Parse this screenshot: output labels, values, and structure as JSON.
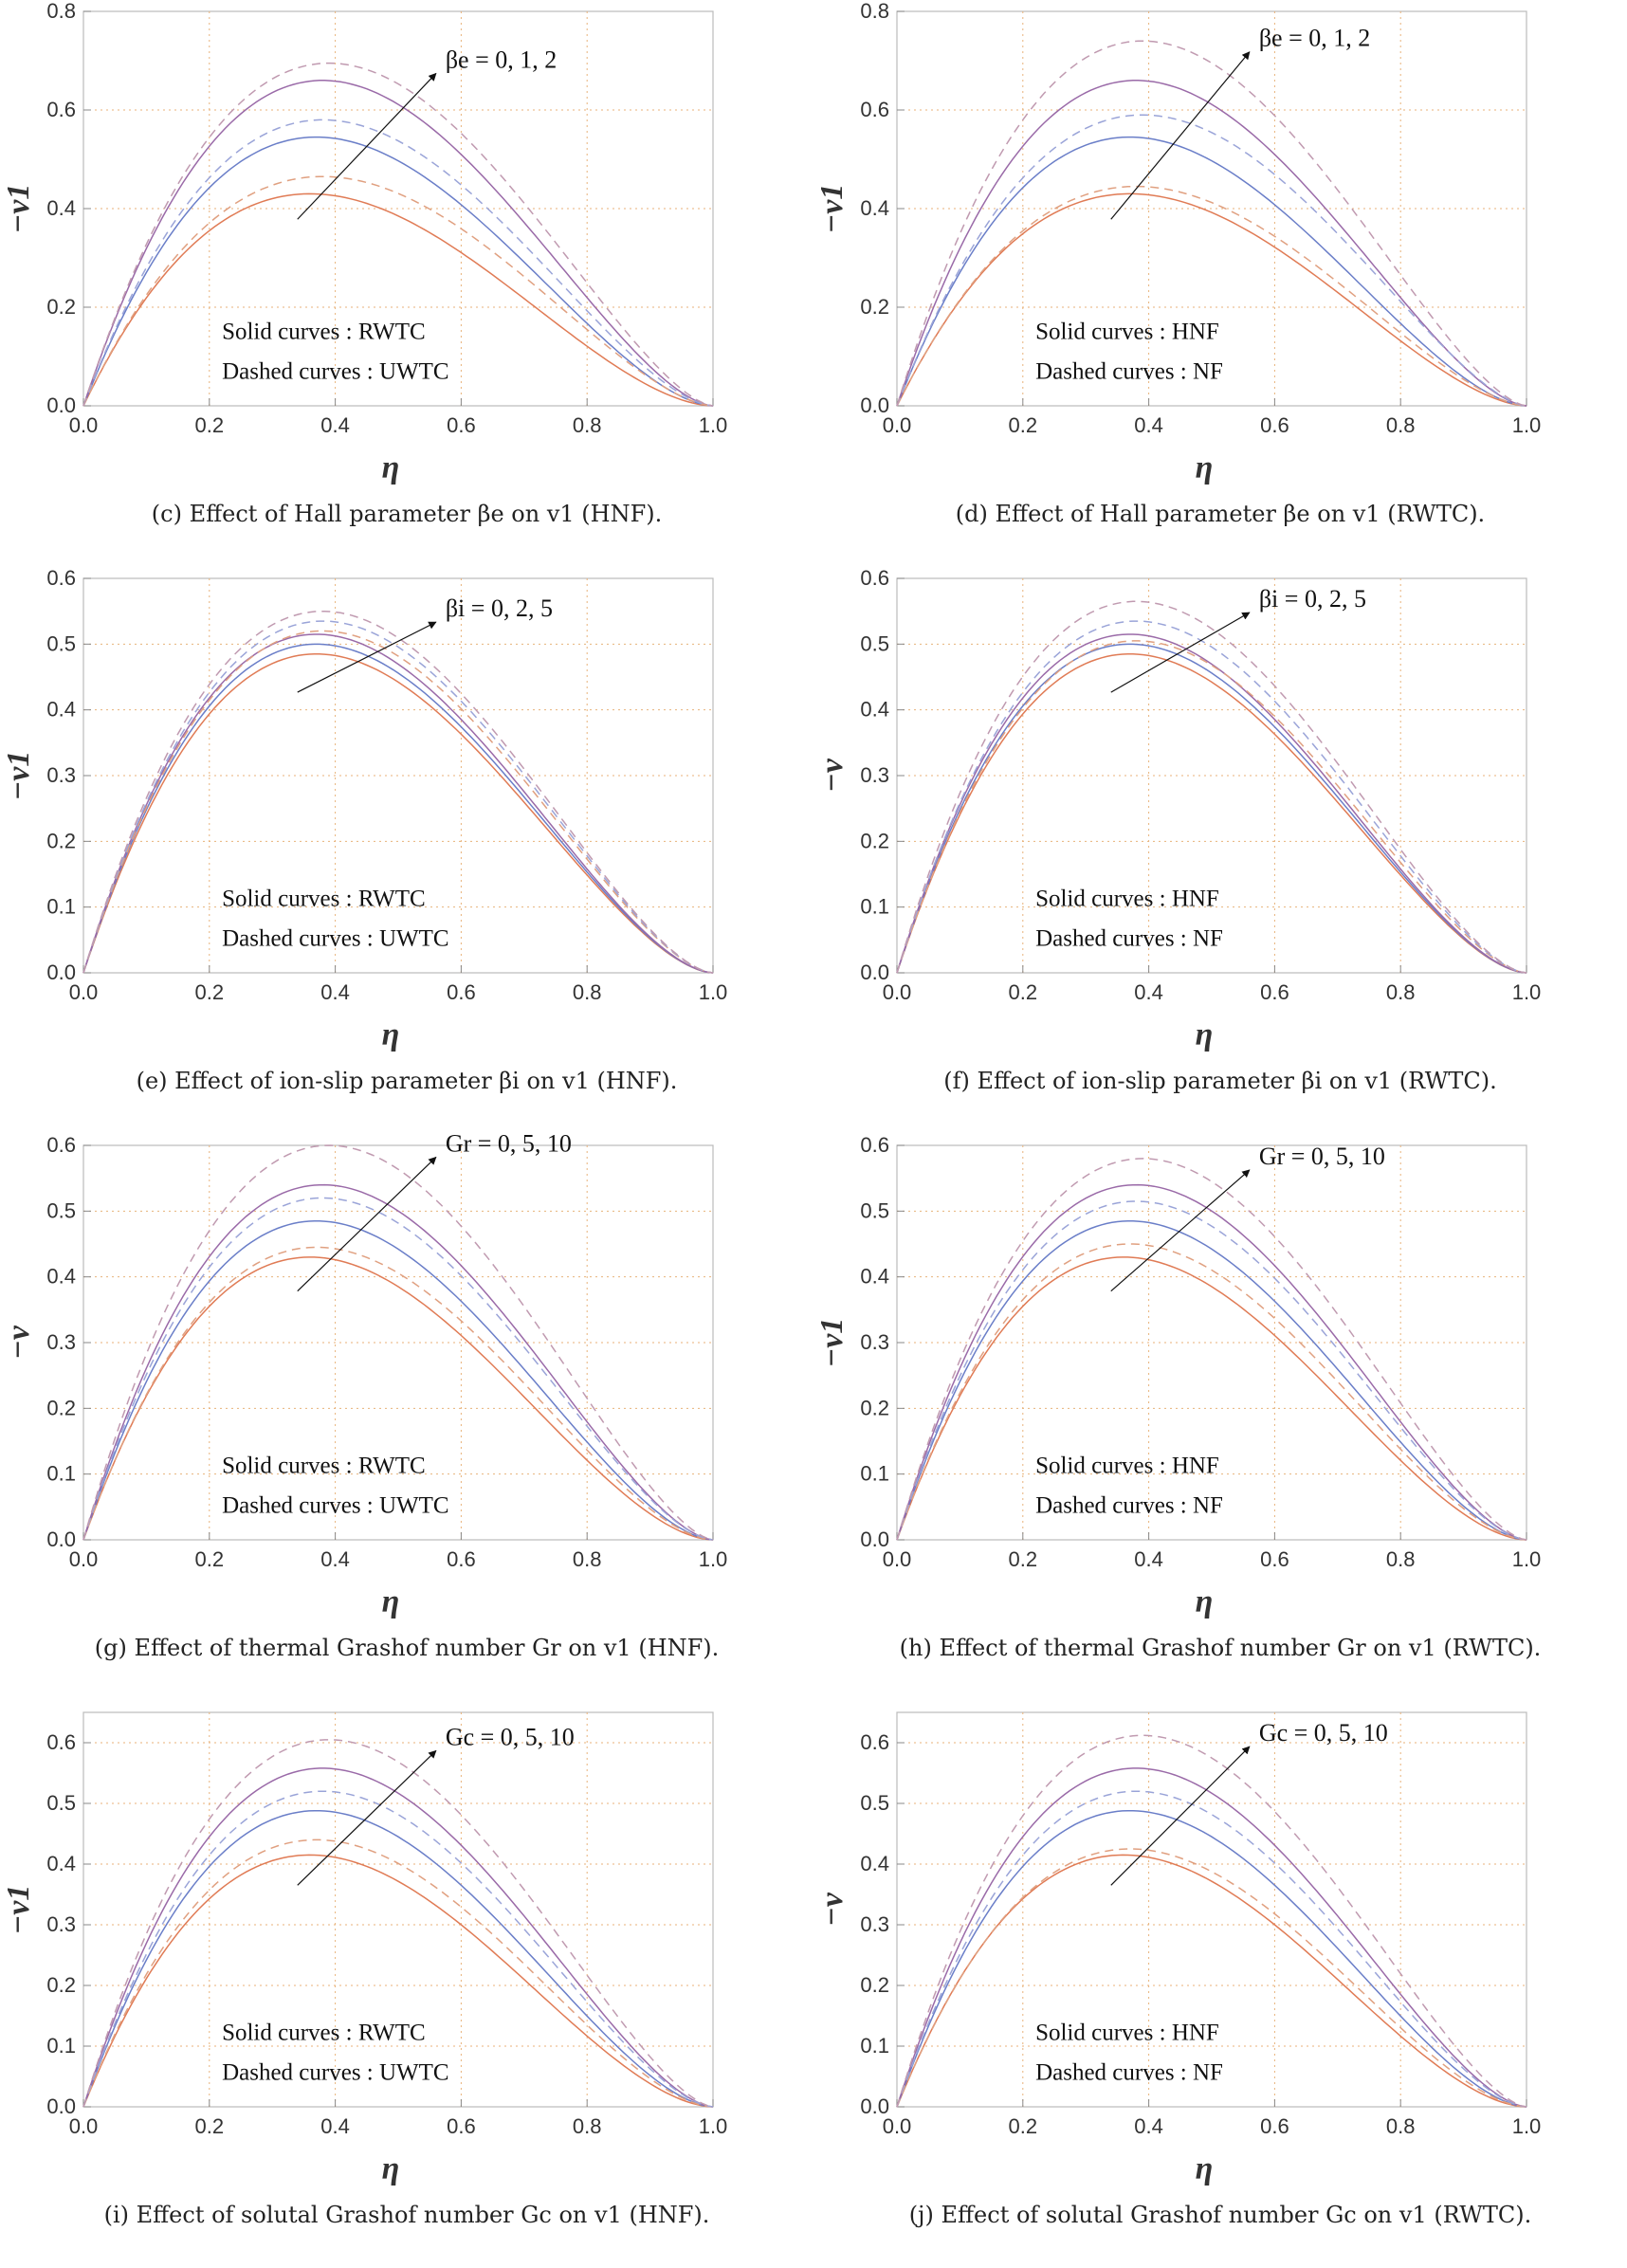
{
  "curve_colors": {
    "c0": "#e07b55",
    "c1": "#6a7ec8",
    "c2": "#9a6aa8",
    "d0": "#e0a080",
    "d1": "#9aa4d8",
    "d2": "#c09ab0"
  },
  "chart_data": [
    {
      "id": "c",
      "type": "line",
      "caption": "(c) Effect of Hall parameter βe on v1 (HNF).",
      "ylabel": "−v1",
      "xlabel": "η",
      "xlim": [
        0,
        1
      ],
      "ylim": [
        0,
        0.8
      ],
      "xticks": [
        "0.0",
        "0.2",
        "0.4",
        "0.6",
        "0.8",
        "1.0"
      ],
      "yticks": [
        "0.0",
        "0.2",
        "0.4",
        "0.6",
        "0.8"
      ],
      "legend": [
        "Solid curves : RWTC",
        "Dashed curves : UWTC"
      ],
      "annotation": "βe = 0, 1, 2",
      "series": [
        {
          "name": "solid βe=0",
          "style": "solid",
          "peak": 0.43,
          "peak_x": 0.36
        },
        {
          "name": "solid βe=1",
          "style": "solid",
          "peak": 0.545,
          "peak_x": 0.37
        },
        {
          "name": "solid βe=2",
          "style": "solid",
          "peak": 0.66,
          "peak_x": 0.38
        },
        {
          "name": "dashed βe=0",
          "style": "dashed",
          "peak": 0.465,
          "peak_x": 0.38
        },
        {
          "name": "dashed βe=1",
          "style": "dashed",
          "peak": 0.58,
          "peak_x": 0.38
        },
        {
          "name": "dashed βe=2",
          "style": "dashed",
          "peak": 0.695,
          "peak_x": 0.39
        }
      ]
    },
    {
      "id": "d",
      "type": "line",
      "caption": "(d) Effect of Hall parameter βe on v1 (RWTC).",
      "ylabel": "−v1",
      "xlabel": "η",
      "xlim": [
        0,
        1
      ],
      "ylim": [
        0,
        0.8
      ],
      "xticks": [
        "0.0",
        "0.2",
        "0.4",
        "0.6",
        "0.8",
        "1.0"
      ],
      "yticks": [
        "0.0",
        "0.2",
        "0.4",
        "0.6",
        "0.8"
      ],
      "legend": [
        "Solid curves : HNF",
        "Dashed curves : NF"
      ],
      "annotation": "βe = 0, 1, 2",
      "series": [
        {
          "name": "solid βe=0",
          "style": "solid",
          "peak": 0.43,
          "peak_x": 0.37
        },
        {
          "name": "solid βe=1",
          "style": "solid",
          "peak": 0.545,
          "peak_x": 0.37
        },
        {
          "name": "solid βe=2",
          "style": "solid",
          "peak": 0.66,
          "peak_x": 0.38
        },
        {
          "name": "dashed βe=0",
          "style": "dashed",
          "peak": 0.445,
          "peak_x": 0.38
        },
        {
          "name": "dashed βe=1",
          "style": "dashed",
          "peak": 0.59,
          "peak_x": 0.39
        },
        {
          "name": "dashed βe=2",
          "style": "dashed",
          "peak": 0.74,
          "peak_x": 0.39
        }
      ]
    },
    {
      "id": "e",
      "type": "line",
      "caption": "(e) Effect of ion-slip parameter βi on v1 (HNF).",
      "ylabel": "−v1",
      "xlabel": "η",
      "xlim": [
        0,
        1
      ],
      "ylim": [
        0,
        0.6
      ],
      "xticks": [
        "0.0",
        "0.2",
        "0.4",
        "0.6",
        "0.8",
        "1.0"
      ],
      "yticks": [
        "0.0",
        "0.1",
        "0.2",
        "0.3",
        "0.4",
        "0.5",
        "0.6"
      ],
      "legend": [
        "Solid curves : RWTC",
        "Dashed curves : UWTC"
      ],
      "annotation": "βi = 0, 2, 5",
      "series": [
        {
          "name": "solid βi=0",
          "style": "solid",
          "peak": 0.485,
          "peak_x": 0.37
        },
        {
          "name": "solid βi=2",
          "style": "solid",
          "peak": 0.5,
          "peak_x": 0.37
        },
        {
          "name": "solid βi=5",
          "style": "solid",
          "peak": 0.515,
          "peak_x": 0.37
        },
        {
          "name": "dashed βi=0",
          "style": "dashed",
          "peak": 0.52,
          "peak_x": 0.38
        },
        {
          "name": "dashed βi=2",
          "style": "dashed",
          "peak": 0.535,
          "peak_x": 0.38
        },
        {
          "name": "dashed βi=5",
          "style": "dashed",
          "peak": 0.55,
          "peak_x": 0.38
        }
      ]
    },
    {
      "id": "f",
      "type": "line",
      "caption": "(f) Effect of ion-slip parameter βi on v1 (RWTC).",
      "ylabel": "−v",
      "xlabel": "η",
      "xlim": [
        0,
        1
      ],
      "ylim": [
        0,
        0.6
      ],
      "xticks": [
        "0.0",
        "0.2",
        "0.4",
        "0.6",
        "0.8",
        "1.0"
      ],
      "yticks": [
        "0.0",
        "0.1",
        "0.2",
        "0.3",
        "0.4",
        "0.5",
        "0.6"
      ],
      "legend": [
        "Solid curves : HNF",
        "Dashed curves : NF"
      ],
      "annotation": "βi = 0, 2, 5",
      "series": [
        {
          "name": "solid βi=0",
          "style": "solid",
          "peak": 0.485,
          "peak_x": 0.37
        },
        {
          "name": "solid βi=2",
          "style": "solid",
          "peak": 0.5,
          "peak_x": 0.37
        },
        {
          "name": "solid βi=5",
          "style": "solid",
          "peak": 0.515,
          "peak_x": 0.37
        },
        {
          "name": "dashed βi=0",
          "style": "dashed",
          "peak": 0.505,
          "peak_x": 0.38
        },
        {
          "name": "dashed βi=2",
          "style": "dashed",
          "peak": 0.535,
          "peak_x": 0.38
        },
        {
          "name": "dashed βi=5",
          "style": "dashed",
          "peak": 0.565,
          "peak_x": 0.38
        }
      ]
    },
    {
      "id": "g",
      "type": "line",
      "caption": "(g) Effect of thermal Grashof number Gr on v1 (HNF).",
      "ylabel": "−v",
      "xlabel": "η",
      "xlim": [
        0,
        1
      ],
      "ylim": [
        0,
        0.6
      ],
      "xticks": [
        "0.0",
        "0.2",
        "0.4",
        "0.6",
        "0.8",
        "1.0"
      ],
      "yticks": [
        "0.0",
        "0.1",
        "0.2",
        "0.3",
        "0.4",
        "0.5",
        "0.6"
      ],
      "legend": [
        "Solid curves : RWTC",
        "Dashed curves : UWTC"
      ],
      "annotation": "Gr = 0, 5, 10",
      "series": [
        {
          "name": "solid Gr=0",
          "style": "solid",
          "peak": 0.43,
          "peak_x": 0.36
        },
        {
          "name": "solid Gr=5",
          "style": "solid",
          "peak": 0.485,
          "peak_x": 0.37
        },
        {
          "name": "solid Gr=10",
          "style": "solid",
          "peak": 0.54,
          "peak_x": 0.38
        },
        {
          "name": "dashed Gr=0",
          "style": "dashed",
          "peak": 0.445,
          "peak_x": 0.37
        },
        {
          "name": "dashed Gr=5",
          "style": "dashed",
          "peak": 0.52,
          "peak_x": 0.38
        },
        {
          "name": "dashed Gr=10",
          "style": "dashed",
          "peak": 0.6,
          "peak_x": 0.39
        }
      ]
    },
    {
      "id": "h",
      "type": "line",
      "caption": "(h) Effect of thermal Grashof number Gr on v1 (RWTC).",
      "ylabel": "−v1",
      "xlabel": "η",
      "xlim": [
        0,
        1
      ],
      "ylim": [
        0,
        0.6
      ],
      "xticks": [
        "0.0",
        "0.2",
        "0.4",
        "0.6",
        "0.8",
        "1.0"
      ],
      "yticks": [
        "0.0",
        "0.1",
        "0.2",
        "0.3",
        "0.4",
        "0.5",
        "0.6"
      ],
      "legend": [
        "Solid curves : HNF",
        "Dashed curves : NF"
      ],
      "annotation": "Gr = 0, 5, 10",
      "series": [
        {
          "name": "solid Gr=0",
          "style": "solid",
          "peak": 0.43,
          "peak_x": 0.36
        },
        {
          "name": "solid Gr=5",
          "style": "solid",
          "peak": 0.485,
          "peak_x": 0.37
        },
        {
          "name": "solid Gr=10",
          "style": "solid",
          "peak": 0.54,
          "peak_x": 0.38
        },
        {
          "name": "dashed Gr=0",
          "style": "dashed",
          "peak": 0.45,
          "peak_x": 0.37
        },
        {
          "name": "dashed Gr=5",
          "style": "dashed",
          "peak": 0.515,
          "peak_x": 0.38
        },
        {
          "name": "dashed Gr=10",
          "style": "dashed",
          "peak": 0.58,
          "peak_x": 0.39
        }
      ]
    },
    {
      "id": "i",
      "type": "line",
      "caption": "(i) Effect of solutal Grashof number Gc on v1 (HNF).",
      "ylabel": "−v1",
      "xlabel": "η",
      "xlim": [
        0,
        1
      ],
      "ylim": [
        0,
        0.65
      ],
      "xticks": [
        "0.0",
        "0.2",
        "0.4",
        "0.6",
        "0.8",
        "1.0"
      ],
      "yticks": [
        "0.0",
        "0.1",
        "0.2",
        "0.3",
        "0.4",
        "0.5",
        "0.6"
      ],
      "legend": [
        "Solid curves : RWTC",
        "Dashed curves : UWTC"
      ],
      "annotation": "Gc = 0, 5, 10",
      "series": [
        {
          "name": "solid Gc=0",
          "style": "solid",
          "peak": 0.415,
          "peak_x": 0.36
        },
        {
          "name": "solid Gc=5",
          "style": "solid",
          "peak": 0.488,
          "peak_x": 0.37
        },
        {
          "name": "solid Gc=10",
          "style": "solid",
          "peak": 0.558,
          "peak_x": 0.38
        },
        {
          "name": "dashed Gc=0",
          "style": "dashed",
          "peak": 0.44,
          "peak_x": 0.37
        },
        {
          "name": "dashed Gc=5",
          "style": "dashed",
          "peak": 0.52,
          "peak_x": 0.38
        },
        {
          "name": "dashed Gc=10",
          "style": "dashed",
          "peak": 0.605,
          "peak_x": 0.39
        }
      ]
    },
    {
      "id": "j",
      "type": "line",
      "caption": "(j) Effect of solutal Grashof number Gc on v1 (RWTC).",
      "ylabel": "−v",
      "xlabel": "η",
      "xlim": [
        0,
        1
      ],
      "ylim": [
        0,
        0.65
      ],
      "xticks": [
        "0.0",
        "0.2",
        "0.4",
        "0.6",
        "0.8",
        "1.0"
      ],
      "yticks": [
        "0.0",
        "0.1",
        "0.2",
        "0.3",
        "0.4",
        "0.5",
        "0.6"
      ],
      "legend": [
        "Solid curves : HNF",
        "Dashed curves : NF"
      ],
      "annotation": "Gc = 0, 5, 10",
      "series": [
        {
          "name": "solid Gc=0",
          "style": "solid",
          "peak": 0.415,
          "peak_x": 0.36
        },
        {
          "name": "solid Gc=5",
          "style": "solid",
          "peak": 0.488,
          "peak_x": 0.37
        },
        {
          "name": "solid Gc=10",
          "style": "solid",
          "peak": 0.558,
          "peak_x": 0.38
        },
        {
          "name": "dashed Gc=0",
          "style": "dashed",
          "peak": 0.425,
          "peak_x": 0.37
        },
        {
          "name": "dashed Gc=5",
          "style": "dashed",
          "peak": 0.52,
          "peak_x": 0.38
        },
        {
          "name": "dashed Gc=10",
          "style": "dashed",
          "peak": 0.612,
          "peak_x": 0.39
        }
      ]
    }
  ]
}
